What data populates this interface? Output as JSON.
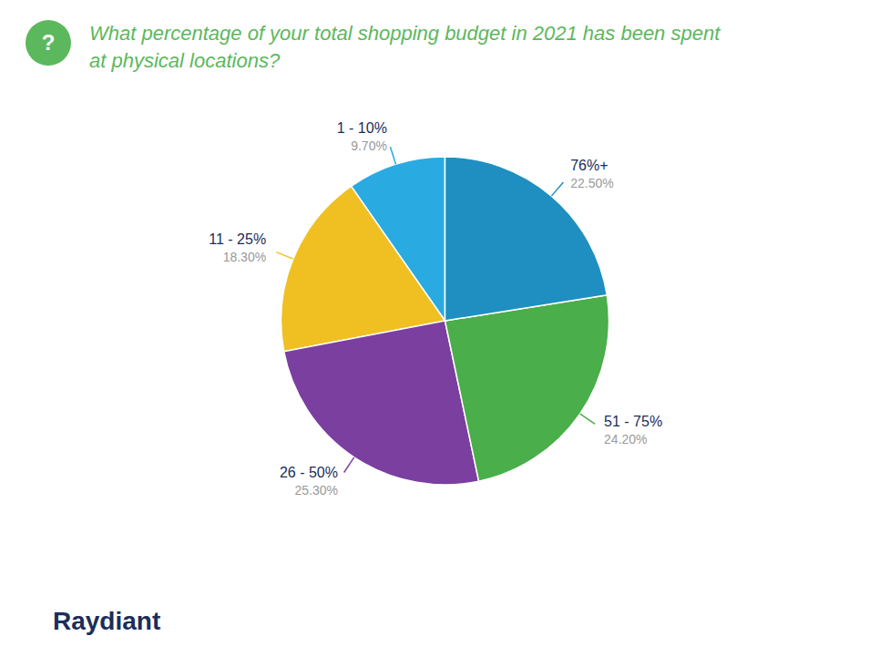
{
  "chart_data": {
    "type": "pie",
    "title": "What percentage of your total shopping budget in 2021 has been spent at physical locations?",
    "categories": [
      "1 - 10%",
      "11 - 25%",
      "26 - 50%",
      "51 - 75%",
      "76%+"
    ],
    "values": [
      9.7,
      18.3,
      25.3,
      24.2,
      22.5
    ],
    "value_labels": [
      "9.70%",
      "18.30%",
      "25.30%",
      "24.20%",
      "22.50%"
    ],
    "colors": [
      "#29abe2",
      "#f0c022",
      "#7b3fa0",
      "#4aae4a",
      "#1e8fc0"
    ],
    "data_labels": true,
    "annotations": [
      "?",
      "Raydiant"
    ]
  }
}
